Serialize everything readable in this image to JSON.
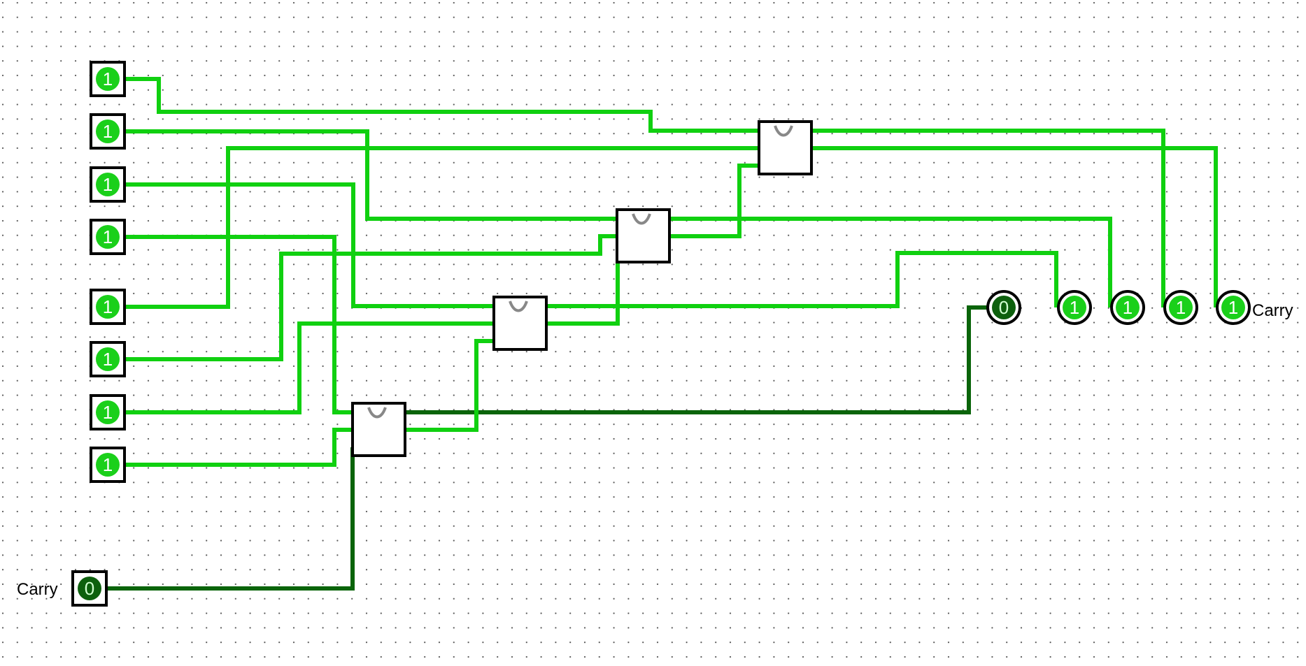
{
  "colors": {
    "wire_on": "#10d010",
    "wire_off": "#0a640a",
    "pin_on": "#1ad01a",
    "pin_off": "#0d600d",
    "grid_dot": "#555555",
    "outline": "#000000",
    "bit_text_on": "#ffffff",
    "bit_text_off": "#d0ffd0"
  },
  "inputs": [
    {
      "value": "1"
    },
    {
      "value": "1"
    },
    {
      "value": "1"
    },
    {
      "value": "1"
    },
    {
      "value": "1"
    },
    {
      "value": "1"
    },
    {
      "value": "1"
    },
    {
      "value": "1"
    }
  ],
  "carry_in": {
    "label": "Carry",
    "value": "0"
  },
  "outputs": [
    {
      "value": "0"
    },
    {
      "value": "1"
    },
    {
      "value": "1"
    },
    {
      "value": "1"
    },
    {
      "value": "1"
    }
  ],
  "carry_out": {
    "label": "Carry"
  },
  "adders": [
    {
      "icon": "adder-icon"
    },
    {
      "icon": "adder-icon"
    },
    {
      "icon": "adder-icon"
    },
    {
      "icon": "adder-icon"
    }
  ]
}
